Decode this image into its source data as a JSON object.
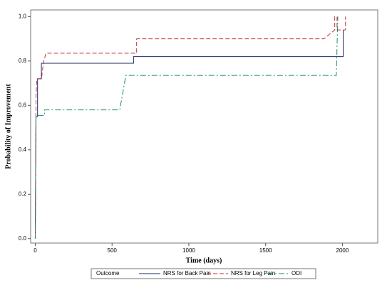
{
  "chart_data": {
    "type": "line",
    "x_label": "Time (days)",
    "y_label": "Probability of Improvement",
    "legend_title": "Outcome",
    "xlim": [
      -30,
      2230
    ],
    "ylim": [
      -0.02,
      1.03
    ],
    "xticks": [
      0,
      500,
      1000,
      1500,
      2000
    ],
    "yticks": [
      {
        "value": 0,
        "label": "0.0"
      },
      {
        "value": 0.2,
        "label": "0.2"
      },
      {
        "value": 0.4,
        "label": "0.4"
      },
      {
        "value": 0.6,
        "label": "0.6"
      },
      {
        "value": 0.8,
        "label": "0.8"
      },
      {
        "value": 1,
        "label": "1.0"
      }
    ],
    "series": [
      {
        "name": "NRS for Back Pain",
        "color": "#1f2a6b",
        "dash": "none",
        "x": [
          0,
          5,
          15,
          15,
          40,
          40,
          60,
          640,
          640,
          2005,
          2005
        ],
        "values": [
          0,
          0.55,
          0.55,
          0.72,
          0.72,
          0.79,
          0.79,
          0.79,
          0.82,
          0.82,
          0.94
        ]
      },
      {
        "name": "NRS for Leg Pain",
        "color": "#c0303a",
        "dash": "6,3",
        "x": [
          0,
          5,
          10,
          40,
          55,
          70,
          660,
          660,
          1880,
          1950,
          1950,
          1965,
          1965,
          2020,
          2020
        ],
        "values": [
          0,
          0.64,
          0.72,
          0.72,
          0.8,
          0.835,
          0.835,
          0.9,
          0.9,
          0.94,
          1.0,
          1.0,
          0.94,
          0.94,
          1.0
        ]
      },
      {
        "name": "ODI",
        "color": "#1a8a6a",
        "dash": "8,3,2,3",
        "x": [
          0,
          5,
          60,
          60,
          550,
          590,
          1960,
          1970
        ],
        "values": [
          0,
          0.555,
          0.555,
          0.58,
          0.58,
          0.735,
          0.735,
          1.0
        ]
      }
    ]
  }
}
